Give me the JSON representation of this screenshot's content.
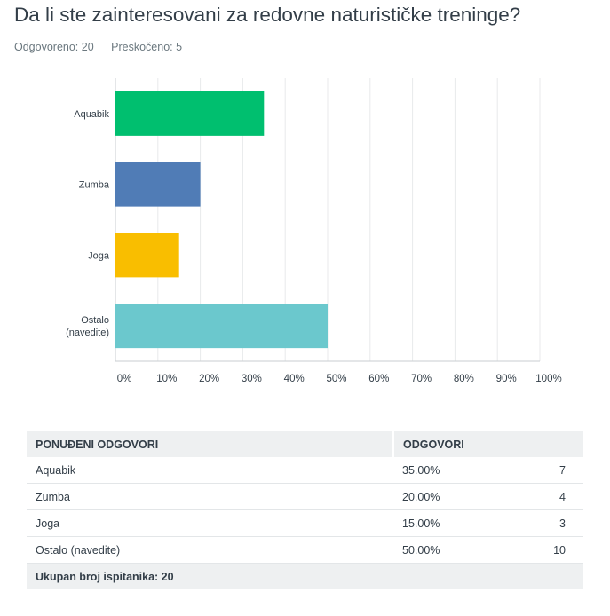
{
  "title": "Da li ste zainteresovani za redovne naturističke treninge?",
  "meta": {
    "answered": "Odgovoreno: 20",
    "skipped": "Preskočeno: 5"
  },
  "chart_data": {
    "type": "bar",
    "orientation": "horizontal",
    "categories": [
      [
        "Aquabik"
      ],
      [
        "Zumba"
      ],
      [
        "Joga"
      ],
      [
        "Ostalo",
        "(navedite)"
      ]
    ],
    "values": [
      35,
      20,
      15,
      50
    ],
    "colors": [
      "#00bf6f",
      "#507cb6",
      "#f9be00",
      "#6bc8cd"
    ],
    "xlim": [
      0,
      100
    ],
    "ticks": [
      "0%",
      "10%",
      "20%",
      "30%",
      "40%",
      "50%",
      "60%",
      "70%",
      "80%",
      "90%",
      "100%"
    ],
    "grid": true
  },
  "table": {
    "headers": {
      "options": "PONUĐENI ODGOVORI",
      "answers": "ODGOVORI"
    },
    "rows": [
      {
        "label": "Aquabik",
        "percent": "35.00%",
        "count": "7"
      },
      {
        "label": "Zumba",
        "percent": "20.00%",
        "count": "4"
      },
      {
        "label": "Joga",
        "percent": "15.00%",
        "count": "3"
      },
      {
        "label": "Ostalo (navedite)",
        "percent": "50.00%",
        "count": "10"
      }
    ],
    "total": "Ukupan broj ispitanika: 20"
  }
}
